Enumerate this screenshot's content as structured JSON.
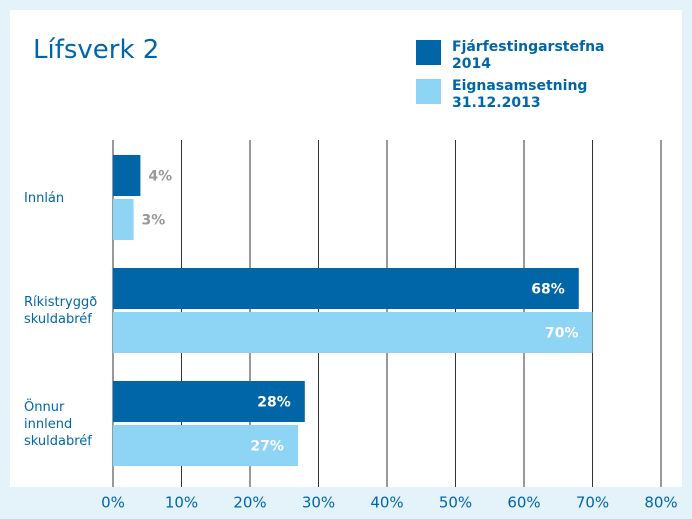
{
  "chart_data": {
    "type": "bar",
    "orientation": "horizontal",
    "title": "Lífsverk 2",
    "categories": [
      "Innlán",
      "Ríkistryggð skuldabréf",
      "Önnur innlend skuldabréf"
    ],
    "series": [
      {
        "name": "Fjárfestingarstefna 2014",
        "color": "#0066a8",
        "values": [
          4,
          68,
          28
        ],
        "value_labels": [
          "4%",
          "68%",
          "28%"
        ]
      },
      {
        "name": "Eignasamsetning 31.12.2013",
        "color": "#8dd4f5",
        "values": [
          3,
          70,
          27
        ],
        "value_labels": [
          "3%",
          "70%",
          "27%"
        ]
      }
    ],
    "xlim": [
      0,
      80
    ],
    "xticks": [
      {
        "value": 0,
        "label": "0%"
      },
      {
        "value": 10,
        "label": "10%"
      },
      {
        "value": 20,
        "label": "20%"
      },
      {
        "value": 30,
        "label": "30%"
      },
      {
        "value": 40,
        "label": "40%"
      },
      {
        "value": 50,
        "label": "50%"
      },
      {
        "value": 60,
        "label": "60%"
      },
      {
        "value": 70,
        "label": "70%"
      },
      {
        "value": 80,
        "label": "80%"
      }
    ],
    "grid": true
  }
}
